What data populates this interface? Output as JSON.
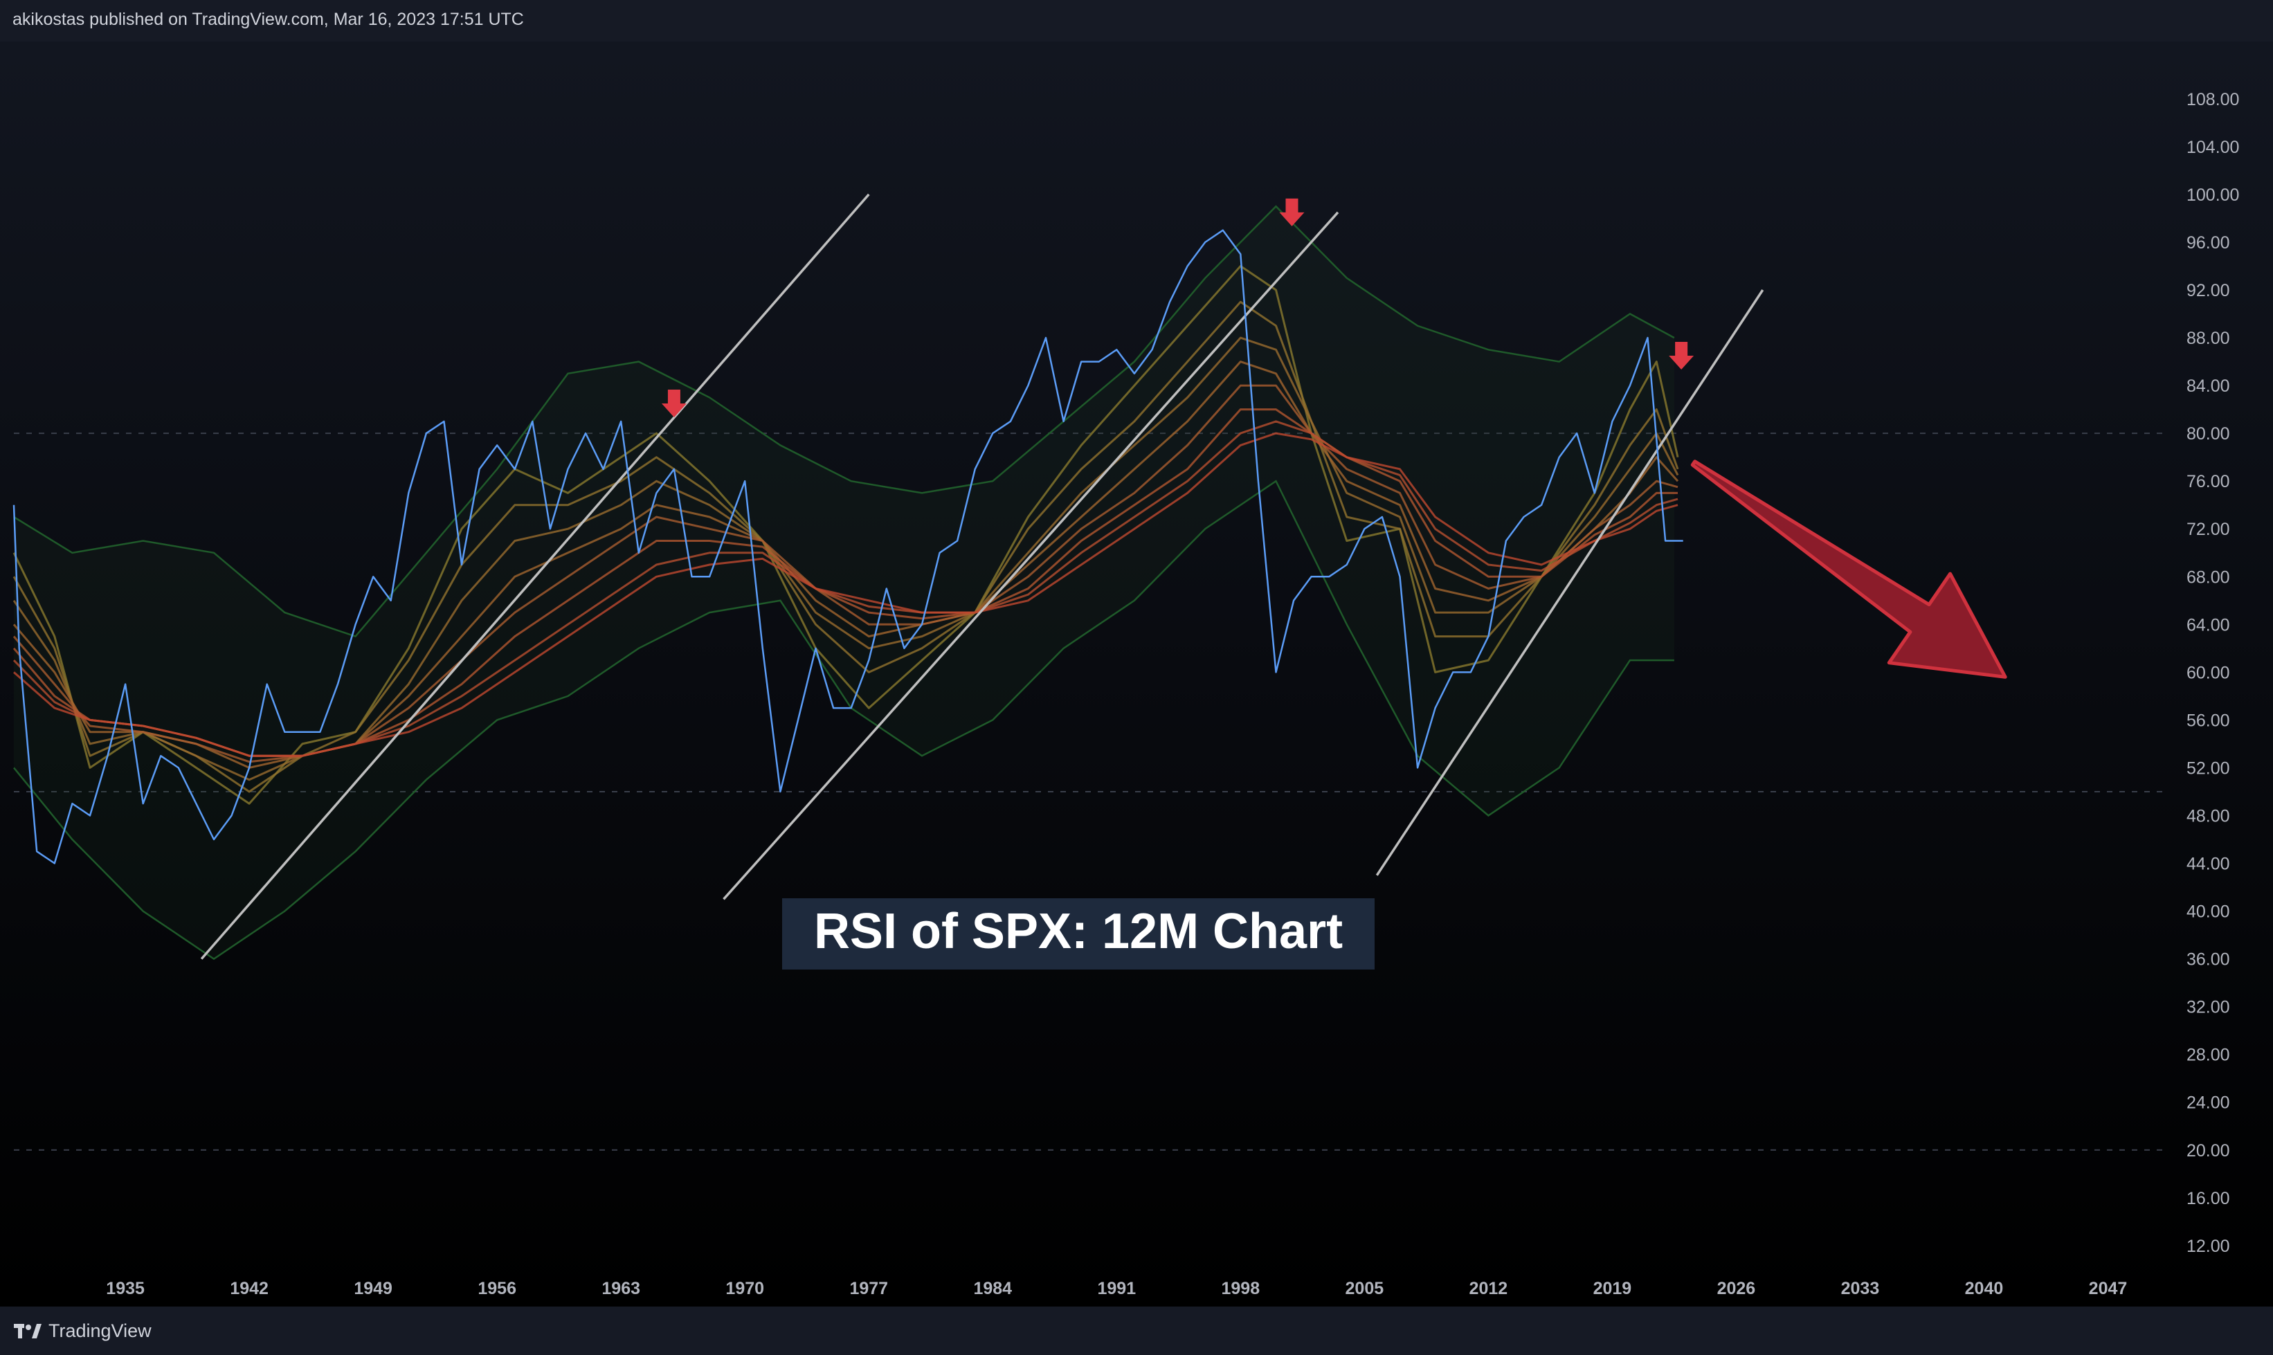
{
  "header": {
    "published_text": "akikostas published on TradingView.com, Mar 16, 2023 17:51 UTC"
  },
  "footer": {
    "brand": "TradingView",
    "logo_icon": "tradingview-logo-icon"
  },
  "colors": {
    "rsi_line": "#5b9cf6",
    "trendline": "#bfbfbf",
    "band": "#1f5a2a",
    "ribbon_fast": "#8a7a2e",
    "ribbon_slow": "#c0482f",
    "arrow": "#a2202f",
    "arrow_edge": "#d0323e",
    "marker": "#e03a45",
    "title_bg": "#1e2a3d"
  },
  "chart_data": {
    "type": "line",
    "title": "RSI of SPX: 12M Chart",
    "xlabel": "",
    "ylabel": "",
    "x_ticks": [
      "1935",
      "1942",
      "1949",
      "1956",
      "1963",
      "1970",
      "1977",
      "1984",
      "1991",
      "1998",
      "2005",
      "2012",
      "2019",
      "2026",
      "2033",
      "2040",
      "2047"
    ],
    "y_ticks": [
      "12.00",
      "16.00",
      "20.00",
      "24.00",
      "28.00",
      "32.00",
      "36.00",
      "40.00",
      "44.00",
      "48.00",
      "52.00",
      "56.00",
      "60.00",
      "64.00",
      "68.00",
      "72.00",
      "76.00",
      "80.00",
      "84.00",
      "88.00",
      "92.00",
      "96.00",
      "100.00",
      "104.00",
      "108.00"
    ],
    "xlim": [
      1928.7,
      2050.5
    ],
    "ylim": [
      8.4,
      112.8
    ],
    "reference_lines": [
      20,
      50,
      80
    ],
    "series": [
      {
        "name": "RSI",
        "role": "rsi",
        "x": [
          1928.7,
          1929,
          1930,
          1931,
          1932,
          1933,
          1934,
          1935,
          1936,
          1937,
          1938,
          1939,
          1940,
          1941,
          1942,
          1943,
          1944,
          1945,
          1946,
          1947,
          1948,
          1949,
          1950,
          1951,
          1952,
          1953,
          1954,
          1955,
          1956,
          1957,
          1958,
          1959,
          1960,
          1961,
          1962,
          1963,
          1964,
          1965,
          1966,
          1967,
          1968,
          1969,
          1970,
          1971,
          1972,
          1973,
          1974,
          1975,
          1976,
          1977,
          1978,
          1979,
          1980,
          1981,
          1982,
          1983,
          1984,
          1985,
          1986,
          1987,
          1988,
          1989,
          1990,
          1991,
          1992,
          1993,
          1994,
          1995,
          1996,
          1997,
          1998,
          1999,
          2000,
          2001,
          2002,
          2003,
          2004,
          2005,
          2006,
          2007,
          2008,
          2009,
          2010,
          2011,
          2012,
          2013,
          2014,
          2015,
          2016,
          2017,
          2018,
          2019,
          2020,
          2021,
          2022,
          2023
        ],
        "y": [
          74,
          62,
          45,
          44,
          49,
          48,
          53,
          59,
          49,
          53,
          52,
          49,
          46,
          48,
          52,
          59,
          55,
          55,
          55,
          59,
          64,
          68,
          66,
          75,
          80,
          81,
          69,
          77,
          79,
          77,
          81,
          72,
          77,
          80,
          77,
          81,
          70,
          75,
          77,
          68,
          68,
          72,
          76,
          62,
          50,
          56,
          62,
          57,
          57,
          61,
          67,
          62,
          64,
          70,
          71,
          77,
          80,
          81,
          84,
          88,
          81,
          86,
          86,
          87,
          85,
          87,
          91,
          94,
          96,
          97,
          95,
          76,
          60,
          66,
          68,
          68,
          69,
          72,
          73,
          68,
          52,
          57,
          60,
          60,
          63,
          71,
          73,
          74,
          78,
          80,
          75,
          81,
          84,
          88,
          71,
          71
        ]
      },
      {
        "name": "Upper band",
        "role": "band",
        "x": [
          1928.7,
          1932,
          1936,
          1940,
          1944,
          1948,
          1952,
          1956,
          1960,
          1964,
          1968,
          1972,
          1976,
          1980,
          1984,
          1988,
          1992,
          1996,
          2000,
          2004,
          2008,
          2012,
          2016,
          2020,
          2022.5
        ],
        "y": [
          73,
          70,
          71,
          70,
          65,
          63,
          70,
          77,
          85,
          86,
          83,
          79,
          76,
          75,
          76,
          81,
          86,
          93,
          99,
          93,
          89,
          87,
          86,
          90,
          88
        ]
      },
      {
        "name": "Lower band",
        "role": "band",
        "x": [
          1928.7,
          1932,
          1936,
          1940,
          1944,
          1948,
          1952,
          1956,
          1960,
          1964,
          1968,
          1972,
          1976,
          1980,
          1984,
          1988,
          1992,
          1996,
          2000,
          2004,
          2008,
          2012,
          2016,
          2020,
          2022.5
        ],
        "y": [
          52,
          46,
          40,
          36,
          40,
          45,
          51,
          56,
          58,
          62,
          65,
          66,
          57,
          53,
          56,
          62,
          66,
          72,
          76,
          64,
          53,
          48,
          52,
          61,
          61
        ]
      },
      {
        "name": "Ribbon 1",
        "role": "ribbon",
        "level": 0,
        "x": [
          1928.7,
          1931,
          1933,
          1936,
          1939,
          1942,
          1945,
          1948,
          1951,
          1954,
          1957,
          1960,
          1963,
          1965,
          1968,
          1971,
          1974,
          1977,
          1980,
          1983,
          1986,
          1989,
          1992,
          1995,
          1998,
          2000,
          2002,
          2004,
          2007,
          2009,
          2012,
          2015,
          2018,
          2020,
          2021.5,
          2022.7
        ],
        "y": [
          70,
          63,
          52,
          55,
          52,
          49,
          54,
          55,
          62,
          72,
          77,
          75,
          78,
          80,
          76,
          71,
          62,
          57,
          61,
          65,
          73,
          79,
          84,
          89,
          94,
          92,
          80,
          71,
          72,
          60,
          61,
          68,
          75,
          82,
          86,
          78
        ]
      },
      {
        "name": "Ribbon 2",
        "role": "ribbon",
        "level": 1,
        "x": [
          1928.7,
          1931,
          1933,
          1936,
          1939,
          1942,
          1945,
          1948,
          1951,
          1954,
          1957,
          1960,
          1963,
          1965,
          1968,
          1971,
          1974,
          1977,
          1980,
          1983,
          1986,
          1989,
          1992,
          1995,
          1998,
          2000,
          2002,
          2004,
          2007,
          2009,
          2012,
          2015,
          2018,
          2020,
          2021.5,
          2022.7
        ],
        "y": [
          68,
          62,
          53,
          55,
          53,
          50,
          53,
          55,
          61,
          69,
          74,
          74,
          76,
          78,
          75,
          71,
          64,
          60,
          62,
          65,
          72,
          77,
          81,
          86,
          91,
          89,
          81,
          73,
          72,
          63,
          63,
          68,
          74,
          79,
          82,
          77
        ]
      },
      {
        "name": "Ribbon 3",
        "role": "ribbon",
        "level": 2,
        "x": [
          1928.7,
          1931,
          1933,
          1936,
          1939,
          1942,
          1945,
          1948,
          1951,
          1954,
          1957,
          1960,
          1963,
          1965,
          1968,
          1971,
          1974,
          1977,
          1980,
          1983,
          1986,
          1989,
          1992,
          1995,
          1998,
          2000,
          2002,
          2004,
          2007,
          2009,
          2012,
          2015,
          2018,
          2020,
          2021.5,
          2022.7
        ],
        "y": [
          66,
          61,
          54,
          55,
          53,
          51,
          53,
          54,
          59,
          66,
          71,
          72,
          74,
          76,
          74,
          71,
          65,
          62,
          63,
          65,
          70,
          75,
          79,
          83,
          88,
          87,
          81,
          75,
          73,
          65,
          65,
          68,
          73,
          77,
          80,
          76.5
        ]
      },
      {
        "name": "Ribbon 4",
        "role": "ribbon",
        "level": 3,
        "x": [
          1928.7,
          1931,
          1933,
          1936,
          1939,
          1942,
          1945,
          1948,
          1951,
          1954,
          1957,
          1960,
          1963,
          1965,
          1968,
          1971,
          1974,
          1977,
          1980,
          1983,
          1986,
          1989,
          1992,
          1995,
          1998,
          2000,
          2002,
          2004,
          2007,
          2009,
          2012,
          2015,
          2018,
          2020,
          2021.5,
          2022.7
        ],
        "y": [
          64,
          60,
          55,
          55,
          54,
          52,
          53,
          54,
          58,
          63,
          68,
          70,
          72,
          74,
          73,
          71,
          66,
          63,
          64,
          65,
          69,
          73,
          77,
          81,
          86,
          85,
          80,
          76,
          74,
          67,
          66,
          68,
          72,
          75,
          78,
          76
        ]
      },
      {
        "name": "Ribbon 5",
        "role": "ribbon",
        "level": 4,
        "x": [
          1928.7,
          1931,
          1933,
          1936,
          1939,
          1942,
          1945,
          1948,
          1951,
          1954,
          1957,
          1960,
          1963,
          1965,
          1968,
          1971,
          1974,
          1977,
          1980,
          1983,
          1986,
          1989,
          1992,
          1995,
          1998,
          2000,
          2002,
          2004,
          2007,
          2009,
          2012,
          2015,
          2018,
          2020,
          2021.5,
          2022.7
        ],
        "y": [
          63,
          59,
          55.5,
          55,
          54,
          52.5,
          53,
          54,
          57,
          61,
          65,
          68,
          71,
          73,
          72,
          71,
          67,
          64,
          64,
          65,
          68,
          72,
          75,
          79,
          84,
          84,
          80,
          77,
          75,
          69,
          67,
          68,
          72,
          74,
          76,
          75.5
        ]
      },
      {
        "name": "Ribbon 6",
        "role": "ribbon",
        "level": 5,
        "x": [
          1928.7,
          1931,
          1933,
          1936,
          1939,
          1942,
          1945,
          1948,
          1951,
          1954,
          1957,
          1960,
          1963,
          1965,
          1968,
          1971,
          1974,
          1977,
          1980,
          1983,
          1986,
          1989,
          1992,
          1995,
          1998,
          2000,
          2002,
          2004,
          2007,
          2009,
          2012,
          2015,
          2018,
          2020,
          2021.5,
          2022.7
        ],
        "y": [
          62,
          58,
          56,
          55.5,
          54.5,
          53,
          53,
          54,
          56,
          59,
          63,
          66,
          69,
          71,
          71,
          70.5,
          67,
          65,
          64.5,
          65,
          67,
          71,
          74,
          77,
          82,
          82,
          80,
          78,
          76,
          71,
          68,
          68,
          71.5,
          73,
          75,
          75
        ]
      },
      {
        "name": "Ribbon 7",
        "role": "ribbon",
        "level": 6,
        "x": [
          1928.7,
          1931,
          1933,
          1936,
          1939,
          1942,
          1945,
          1948,
          1951,
          1954,
          1957,
          1960,
          1963,
          1965,
          1968,
          1971,
          1974,
          1977,
          1980,
          1983,
          1986,
          1989,
          1992,
          1995,
          1998,
          2000,
          2002,
          2004,
          2007,
          2009,
          2012,
          2015,
          2018,
          2020,
          2021.5,
          2022.7
        ],
        "y": [
          61,
          57.5,
          56,
          55.5,
          54.5,
          53,
          53,
          54,
          55.5,
          58,
          61,
          64,
          67,
          69,
          70,
          70,
          67,
          65.5,
          65,
          65,
          66.5,
          70,
          73,
          76,
          80,
          81,
          80,
          78,
          76.5,
          72,
          69,
          68.5,
          71,
          72.5,
          74,
          74.5
        ]
      },
      {
        "name": "Ribbon 8",
        "role": "ribbon",
        "level": 7,
        "x": [
          1928.7,
          1931,
          1933,
          1936,
          1939,
          1942,
          1945,
          1948,
          1951,
          1954,
          1957,
          1960,
          1963,
          1965,
          1968,
          1971,
          1974,
          1977,
          1980,
          1983,
          1986,
          1989,
          1992,
          1995,
          1998,
          2000,
          2002,
          2004,
          2007,
          2009,
          2012,
          2015,
          2018,
          2020,
          2021.5,
          2022.7
        ],
        "y": [
          60,
          57,
          56,
          55.5,
          54.5,
          53,
          53,
          54,
          55,
          57,
          60,
          63,
          66,
          68,
          69,
          69.5,
          67,
          66,
          65,
          65,
          66,
          69,
          72,
          75,
          79,
          80,
          79.5,
          78,
          77,
          73,
          70,
          69,
          71,
          72,
          73.5,
          74
        ]
      },
      {
        "name": "Trendline 1",
        "role": "trend",
        "x": [
          1939.3,
          1977
        ],
        "y": [
          36,
          100
        ]
      },
      {
        "name": "Trendline 2",
        "role": "trend",
        "x": [
          1968.8,
          2003.5
        ],
        "y": [
          41,
          98.5
        ]
      },
      {
        "name": "Trendline 3",
        "role": "trend",
        "x": [
          2005.7,
          2027.5
        ],
        "y": [
          43,
          92
        ]
      }
    ],
    "annotations": [
      {
        "name": "arrow-marker-1",
        "kind": "down-marker",
        "x": 1966,
        "y": 82.5
      },
      {
        "name": "arrow-marker-2",
        "kind": "down-marker",
        "x": 2000.9,
        "y": 98.5
      },
      {
        "name": "arrow-marker-3",
        "kind": "down-marker",
        "x": 2022.9,
        "y": 86.5
      },
      {
        "name": "bearish-projection-arrow",
        "kind": "big-arrow",
        "from": [
          2023.6,
          77.5
        ],
        "to": [
          2041.2,
          59.6
        ]
      }
    ]
  }
}
